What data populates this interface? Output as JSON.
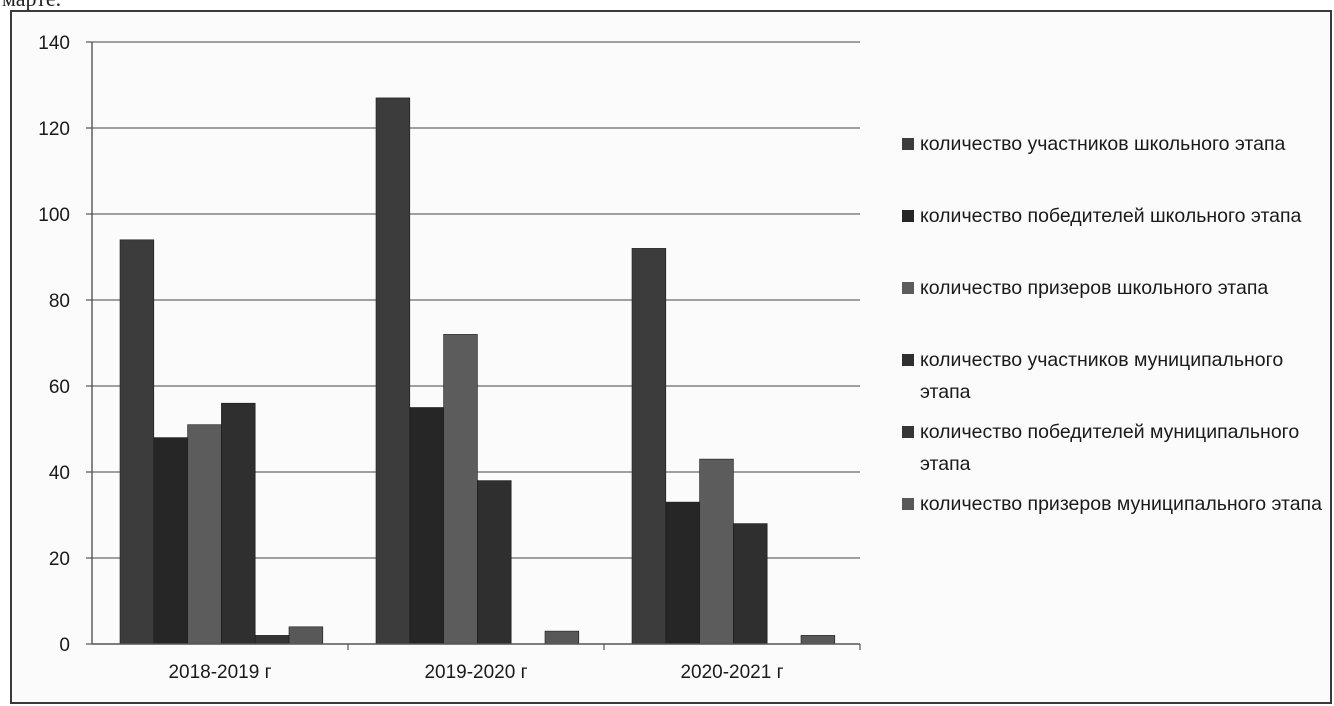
{
  "header_fragment": "марте.",
  "chart_data": {
    "type": "bar",
    "categories": [
      "2018-2019 г",
      "2019-2020 г",
      "2020-2021 г"
    ],
    "ylim": [
      0,
      140
    ],
    "yticks": [
      0,
      20,
      40,
      60,
      80,
      100,
      120,
      140
    ],
    "grid": true,
    "legend_position": "right",
    "series": [
      {
        "name": "количество участников школьного этапа",
        "values": [
          94,
          127,
          92
        ],
        "color": "#3c3c3c"
      },
      {
        "name": "количество победителей школьного этапа",
        "values": [
          48,
          55,
          33
        ],
        "color": "#262626"
      },
      {
        "name": "количество призеров школьного этапа",
        "values": [
          51,
          72,
          43
        ],
        "color": "#5c5c5c"
      },
      {
        "name": "количество участников муниципального этапа",
        "values": [
          56,
          38,
          28
        ],
        "color": "#2f2f2f"
      },
      {
        "name": "количество победителей муниципального этапа",
        "values": [
          2,
          0,
          0
        ],
        "color": "#353535"
      },
      {
        "name": "количество призеров муниципального этапа",
        "values": [
          4,
          3,
          2
        ],
        "color": "#585858"
      }
    ]
  }
}
